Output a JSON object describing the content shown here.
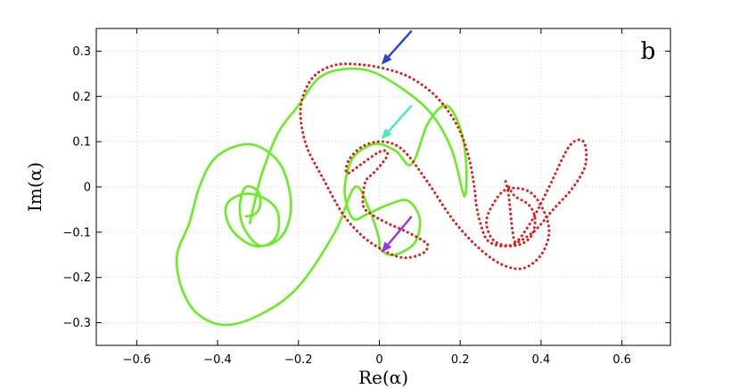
{
  "chart_data": {
    "type": "line",
    "panel_label": "b",
    "xlabel": "Re(α)",
    "ylabel": "Im(α)",
    "xlim": [
      -0.7,
      0.72
    ],
    "ylim": [
      -0.35,
      0.35
    ],
    "grid": true,
    "x_ticks": [
      -0.6,
      -0.4,
      -0.2,
      0,
      0.2,
      0.4,
      0.6
    ],
    "x_tick_labels": [
      "−0.6",
      "−0.4",
      "−0.2",
      "0",
      "0.2",
      "0.4",
      "0.6"
    ],
    "y_ticks": [
      0.3,
      0.2,
      0.1,
      0,
      -0.1,
      -0.2,
      -0.3
    ],
    "y_tick_labels": [
      "0.3",
      "0.2",
      "0.1",
      "0",
      "−0.1",
      "−0.2",
      "−0.3"
    ],
    "series": [
      {
        "color": "#66ee22",
        "style": "solid",
        "x": [
          -0.33,
          -0.307,
          -0.295,
          -0.3,
          -0.33,
          -0.345,
          -0.335,
          -0.295,
          -0.255,
          -0.25,
          -0.275,
          -0.325,
          -0.37,
          -0.38,
          -0.36,
          -0.31,
          -0.255,
          -0.225,
          -0.22,
          -0.245,
          -0.3,
          -0.355,
          -0.41,
          -0.445,
          -0.47,
          -0.5,
          -0.49,
          -0.45,
          -0.38,
          -0.29,
          -0.2,
          -0.11,
          -0.06,
          -0.025,
          -0.005,
          0,
          0,
          0.005,
          0.025,
          0.055,
          0.09,
          0.1,
          0.07,
          0.02,
          -0.03,
          -0.065,
          -0.085,
          -0.08,
          -0.06,
          -0.01,
          0.04,
          0.08,
          0.12,
          0.165,
          0.2,
          0.215,
          0.21,
          0.18,
          0.13,
          0.06,
          -0.02,
          -0.09,
          -0.15,
          -0.2,
          -0.25,
          -0.29,
          -0.31,
          -0.32
        ],
        "y": [
          -0.065,
          -0.06,
          -0.04,
          -0.01,
          0,
          -0.04,
          -0.09,
          -0.13,
          -0.11,
          -0.06,
          -0.03,
          -0.015,
          -0.03,
          -0.06,
          -0.1,
          -0.13,
          -0.12,
          -0.08,
          -0.02,
          0.05,
          0.09,
          0.09,
          0.06,
          0.0,
          -0.08,
          -0.15,
          -0.22,
          -0.28,
          -0.305,
          -0.28,
          -0.22,
          -0.1,
          0,
          -0.05,
          -0.1,
          -0.12,
          -0.13,
          -0.14,
          -0.15,
          -0.145,
          -0.12,
          -0.07,
          -0.03,
          -0.04,
          -0.06,
          -0.07,
          -0.02,
          0.03,
          0.07,
          0.095,
          0.08,
          0.05,
          0.14,
          0.18,
          0.13,
          0.05,
          -0.02,
          0.08,
          0.16,
          0.215,
          0.255,
          0.26,
          0.24,
          0.18,
          0.12,
          0.03,
          -0.04,
          -0.08
        ]
      },
      {
        "color": "#ee1111",
        "style": "dotted",
        "x": [
          0.32,
          0.335,
          0.37,
          0.385,
          0.375,
          0.335,
          0.285,
          0.265,
          0.28,
          0.315,
          0.37,
          0.405,
          0.42,
          0.4,
          0.355,
          0.3,
          0.24,
          0.18,
          0.12,
          0.06,
          0.01,
          -0.04,
          -0.075,
          -0.08,
          -0.045,
          -0.005,
          0.015,
          0.02,
          0.005,
          -0.015,
          -0.035,
          -0.04,
          -0.02,
          0.02,
          0.07,
          0.11,
          0.12,
          0.11,
          0.08,
          0.05,
          0.01,
          -0.04,
          -0.09,
          -0.14,
          -0.18,
          -0.195,
          -0.185,
          -0.155,
          -0.105,
          -0.045,
          0.02,
          0.08,
          0.14,
          0.19,
          0.22,
          0.235,
          0.24,
          0.25,
          0.27,
          0.32,
          0.38,
          0.43,
          0.48,
          0.51,
          0.505,
          0.47,
          0.42,
          0.38,
          0.34,
          0.33,
          0.32,
          0.31
        ],
        "y": [
          0,
          -0.02,
          -0.04,
          -0.07,
          -0.11,
          -0.13,
          -0.12,
          -0.08,
          -0.04,
          -0.005,
          -0.01,
          -0.05,
          -0.1,
          -0.15,
          -0.18,
          -0.17,
          -0.13,
          -0.07,
          0.01,
          0.08,
          0.1,
          0.09,
          0.06,
          0.03,
          0.05,
          0.075,
          0.08,
          0.07,
          0.05,
          0.03,
          0.01,
          -0.04,
          -0.06,
          -0.08,
          -0.1,
          -0.12,
          -0.13,
          -0.145,
          -0.155,
          -0.155,
          -0.14,
          -0.11,
          -0.06,
          0.02,
          0.09,
          0.16,
          0.21,
          0.25,
          0.27,
          0.27,
          0.26,
          0.24,
          0.2,
          0.14,
          0.07,
          0.0,
          -0.04,
          -0.08,
          -0.12,
          -0.13,
          -0.1,
          -0.05,
          0.0,
          0.05,
          0.1,
          0.09,
          0.0,
          -0.07,
          -0.12,
          -0.1,
          -0.02,
          0.02
        ]
      }
    ],
    "arrows": [
      {
        "color": "#2244dd",
        "from": [
          0.08,
          0.345
        ],
        "to": [
          0.005,
          0.27
        ]
      },
      {
        "color": "#44eebb",
        "from": [
          0.08,
          0.18
        ],
        "to": [
          0.005,
          0.105
        ]
      },
      {
        "color": "#9933ee",
        "from": [
          0.08,
          -0.065
        ],
        "to": [
          0.005,
          -0.145
        ]
      }
    ]
  }
}
